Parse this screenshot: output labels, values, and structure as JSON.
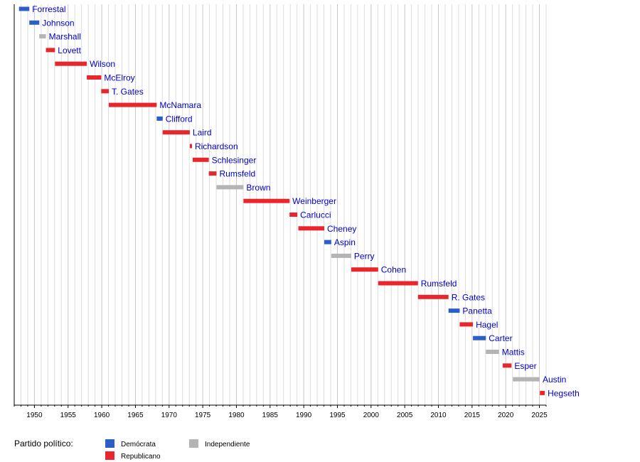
{
  "chart_data": {
    "type": "bar",
    "orientation": "horizontal-timeline",
    "x_axis": {
      "xlim": [
        1947,
        2026
      ],
      "ticks": [
        1950,
        1955,
        1960,
        1965,
        1970,
        1975,
        1980,
        1985,
        1990,
        1995,
        2000,
        2005,
        2010,
        2015,
        2020,
        2025
      ],
      "tick_labels": [
        "1950",
        "1955",
        "1960",
        "1965",
        "1970",
        "1975",
        "1980",
        "1985",
        "1990",
        "1995",
        "2000",
        "2005",
        "2010",
        "2015",
        "2020",
        "2025"
      ],
      "grid": true,
      "grid_step": 1
    },
    "colors": {
      "Demócrata": "#2b5fc7",
      "Republicano": "#e8262c",
      "Independiente": "#b4b4b4",
      "label_text": "#0000cc",
      "gridline": "#dddddd"
    },
    "series": [
      {
        "name": "Forrestal",
        "party": "Demócrata",
        "start": 1947.71,
        "end": 1949.24
      },
      {
        "name": "Johnson",
        "party": "Demócrata",
        "start": 1949.24,
        "end": 1950.72
      },
      {
        "name": "Marshall",
        "party": "Independiente",
        "start": 1950.72,
        "end": 1951.71
      },
      {
        "name": "Lovett",
        "party": "Republicano",
        "start": 1951.71,
        "end": 1953.05
      },
      {
        "name": "Wilson",
        "party": "Republicano",
        "start": 1953.05,
        "end": 1957.78
      },
      {
        "name": "McElroy",
        "party": "Republicano",
        "start": 1957.78,
        "end": 1959.92
      },
      {
        "name": "T. Gates",
        "party": "Republicano",
        "start": 1959.92,
        "end": 1961.05
      },
      {
        "name": "McNamara",
        "party": "Republicano",
        "start": 1961.05,
        "end": 1968.16
      },
      {
        "name": "Clifford",
        "party": "Demócrata",
        "start": 1968.16,
        "end": 1969.05
      },
      {
        "name": "Laird",
        "party": "Republicano",
        "start": 1969.05,
        "end": 1973.08
      },
      {
        "name": "Richardson",
        "party": "Republicano",
        "start": 1973.08,
        "end": 1973.4
      },
      {
        "name": "Schlesinger",
        "party": "Republicano",
        "start": 1973.5,
        "end": 1975.9
      },
      {
        "name": "Rumsfeld",
        "party": "Republicano",
        "start": 1975.9,
        "end": 1977.05
      },
      {
        "name": "Brown",
        "party": "Independiente",
        "start": 1977.05,
        "end": 1981.05
      },
      {
        "name": "Weinberger",
        "party": "Republicano",
        "start": 1981.05,
        "end": 1987.89
      },
      {
        "name": "Carlucci",
        "party": "Republicano",
        "start": 1987.89,
        "end": 1989.05
      },
      {
        "name": "Cheney",
        "party": "Republicano",
        "start": 1989.2,
        "end": 1993.05
      },
      {
        "name": "Aspin",
        "party": "Demócrata",
        "start": 1993.05,
        "end": 1994.09
      },
      {
        "name": "Perry",
        "party": "Independiente",
        "start": 1994.09,
        "end": 1997.05
      },
      {
        "name": "Cohen",
        "party": "Republicano",
        "start": 1997.05,
        "end": 2001.05
      },
      {
        "name": "Rumsfeld",
        "party": "Republicano",
        "start": 2001.05,
        "end": 2006.96
      },
      {
        "name": "R. Gates",
        "party": "Republicano",
        "start": 2006.96,
        "end": 2011.5
      },
      {
        "name": "Panetta",
        "party": "Demócrata",
        "start": 2011.5,
        "end": 2013.16
      },
      {
        "name": "Hagel",
        "party": "Republicano",
        "start": 2013.16,
        "end": 2015.13
      },
      {
        "name": "Carter",
        "party": "Demócrata",
        "start": 2015.13,
        "end": 2017.05
      },
      {
        "name": "Mattis",
        "party": "Independiente",
        "start": 2017.05,
        "end": 2019.0
      },
      {
        "name": "Esper",
        "party": "Republicano",
        "start": 2019.55,
        "end": 2020.86
      },
      {
        "name": "Austin",
        "party": "Independiente",
        "start": 2021.06,
        "end": 2025.05
      },
      {
        "name": "Hegseth",
        "party": "Republicano",
        "start": 2025.07,
        "end": 2025.8
      }
    ],
    "legend": {
      "title": "Partido político:",
      "placement": "bottom-left",
      "entries": [
        {
          "label": "Demócrata",
          "party": "Demócrata"
        },
        {
          "label": "Republicano",
          "party": "Republicano"
        },
        {
          "label": "Independiente",
          "party": "Independiente"
        }
      ]
    }
  }
}
